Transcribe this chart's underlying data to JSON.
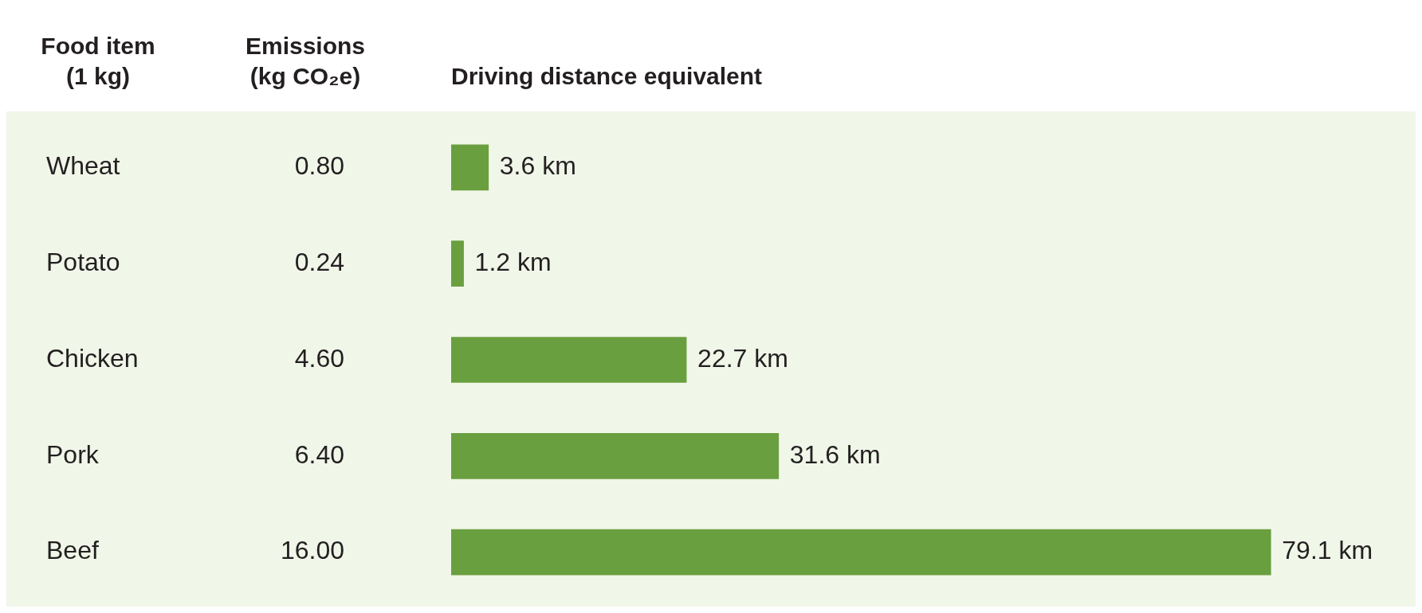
{
  "chart_data": {
    "type": "bar",
    "orientation": "horizontal",
    "ylabel": "Food item (1 kg)",
    "y2label": "Emissions (kg CO₂e)",
    "xlabel": "Driving distance equivalent",
    "categories": [
      "Wheat",
      "Potato",
      "Chicken",
      "Pork",
      "Beef"
    ],
    "y2_categories": [
      "0.80",
      "0.24",
      "4.60",
      "6.40",
      "16.00"
    ],
    "values": [
      3.6,
      1.2,
      22.7,
      31.6,
      79.1
    ],
    "value_labels": [
      "3.6 km",
      "1.2 km",
      "22.7 km",
      "31.6 km",
      "79.1 km"
    ],
    "color": "#6a9f3f"
  }
}
